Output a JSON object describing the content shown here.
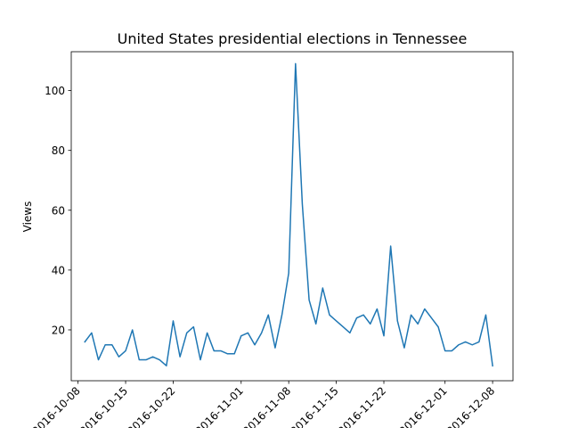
{
  "chart_data": {
    "type": "line",
    "title": "United States presidential elections in Tennessee",
    "xlabel": "",
    "ylabel": "Views",
    "grid": false,
    "xlim": [
      "2016-10-07",
      "2016-12-11"
    ],
    "ylim": [
      3,
      113
    ],
    "x_ticks": [
      "2016-10-08",
      "2016-10-15",
      "2016-10-22",
      "2016-11-01",
      "2016-11-08",
      "2016-11-15",
      "2016-11-22",
      "2016-12-01",
      "2016-12-08"
    ],
    "y_ticks": [
      20,
      40,
      60,
      80,
      100
    ],
    "series": [
      {
        "color": "#1f77b4",
        "x": [
          "2016-10-09",
          "2016-10-10",
          "2016-10-11",
          "2016-10-12",
          "2016-10-13",
          "2016-10-14",
          "2016-10-15",
          "2016-10-16",
          "2016-10-17",
          "2016-10-18",
          "2016-10-19",
          "2016-10-20",
          "2016-10-21",
          "2016-10-22",
          "2016-10-23",
          "2016-10-24",
          "2016-10-25",
          "2016-10-26",
          "2016-10-27",
          "2016-10-28",
          "2016-10-29",
          "2016-10-30",
          "2016-10-31",
          "2016-11-01",
          "2016-11-02",
          "2016-11-03",
          "2016-11-04",
          "2016-11-05",
          "2016-11-06",
          "2016-11-07",
          "2016-11-08",
          "2016-11-09",
          "2016-11-10",
          "2016-11-11",
          "2016-11-12",
          "2016-11-13",
          "2016-11-14",
          "2016-11-15",
          "2016-11-16",
          "2016-11-17",
          "2016-11-18",
          "2016-11-19",
          "2016-11-20",
          "2016-11-21",
          "2016-11-22",
          "2016-11-23",
          "2016-11-24",
          "2016-11-25",
          "2016-11-26",
          "2016-11-27",
          "2016-11-28",
          "2016-11-29",
          "2016-11-30",
          "2016-12-01",
          "2016-12-02",
          "2016-12-03",
          "2016-12-04",
          "2016-12-05",
          "2016-12-06",
          "2016-12-07",
          "2016-12-08"
        ],
        "values": [
          16,
          19,
          10,
          15,
          15,
          11,
          13,
          20,
          10,
          10,
          11,
          10,
          8,
          23,
          11,
          19,
          21,
          10,
          19,
          13,
          13,
          12,
          12,
          18,
          19,
          15,
          19,
          25,
          14,
          25,
          39,
          109,
          62,
          30,
          22,
          34,
          25,
          23,
          21,
          19,
          24,
          25,
          22,
          27,
          18,
          48,
          23,
          14,
          25,
          22,
          27,
          24,
          21,
          13,
          13,
          15,
          16,
          15,
          16,
          25,
          8
        ]
      }
    ]
  }
}
